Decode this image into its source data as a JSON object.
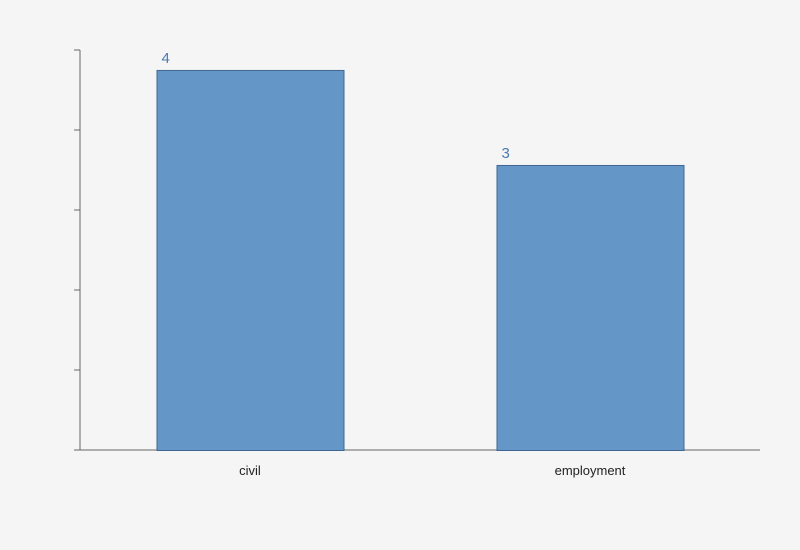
{
  "chart_data": {
    "type": "bar",
    "categories": [
      "civil",
      "employment"
    ],
    "values": [
      4,
      3
    ],
    "data_labels": [
      "4",
      "3"
    ],
    "title": "",
    "xlabel": "",
    "ylabel": "",
    "ylim": [
      0,
      4.21
    ],
    "y_tick_labels_shown": false,
    "grid": false,
    "colors": {
      "bar_fill": "#6497c8",
      "bar_stroke": "#3f6791",
      "data_label": "#4a7bb0",
      "axis": "#666666",
      "background": "#f5f5f5"
    }
  }
}
